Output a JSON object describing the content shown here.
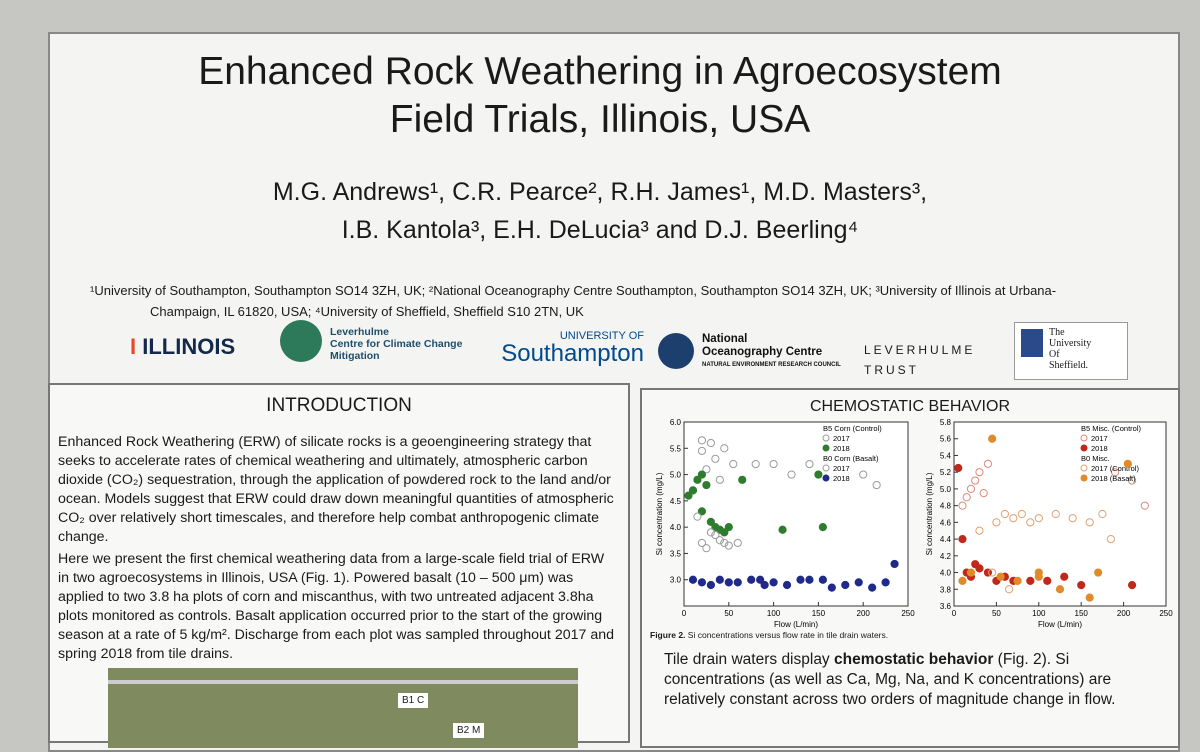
{
  "header": {
    "title_lines": [
      "Enhanced Rock Weathering in Agroecosystem",
      "Field Trials, Illinois, USA"
    ],
    "author_lines": [
      "M.G. Andrews¹, C.R. Pearce², R.H. James¹, M.D. Masters³,",
      "I.B. Kantola³, E.H. DeLucia³ and D.J. Beerling⁴"
    ],
    "affiliation_lines": [
      "¹University of Southampton, Southampton SO14 3ZH, UK; ²National Oceanography Centre Southampton, Southampton SO14 3ZH, UK; ³University of Illinois at Urbana-",
      "Champaign, IL 61820, USA; ⁴University of Sheffield, Sheffield S10 2TN, UK"
    ]
  },
  "logos": {
    "illinois": "ILLINOIS",
    "leverhulme_centre": [
      "Leverhulme",
      "Centre for Climate Change",
      "Mitigation"
    ],
    "southampton": [
      "UNIVERSITY OF",
      "Southampton"
    ],
    "noc": [
      "National",
      "Oceanography Centre",
      "NATURAL ENVIRONMENT RESEARCH COUNCIL"
    ],
    "leverhulme_trust": [
      "LEVERHULME",
      "TRUST"
    ],
    "sheffield": [
      "The",
      "University",
      "Of",
      "Sheffield."
    ]
  },
  "introduction": {
    "heading": "INTRODUCTION",
    "paragraphs": [
      "Enhanced Rock Weathering (ERW) of silicate rocks is a geoengineering strategy that seeks to accelerate rates of chemical weathering and ultimately, atmospheric carbon dioxide (CO₂) sequestration, through the application of powdered rock to the land and/or ocean. Models suggest that ERW could draw down meaningful quantities of atmospheric CO₂ over relatively short timescales, and therefore help combat anthropogenic climate change.",
      "Here we present the first chemical weathering data from a large-scale field trial of ERW in two agroecosystems in Illinois, USA (Fig. 1). Powered basalt (10 – 500 μm) was applied to two 3.8 ha plots of corn and miscanthus, with two untreated adjacent 3.8ha plots monitored as controls. Basalt application occurred prior to the start of the growing season at a rate of 5 kg/m². Discharge from each plot was sampled throughout 2017 and spring 2018 from tile drains."
    ],
    "map_labels": [
      "B1 C",
      "B2 M"
    ]
  },
  "chemostatic": {
    "heading": "CHEMOSTATIC BEHAVIOR",
    "caption_bold": "Figure 2.",
    "caption": " Si concentrations versus flow rate in tile drain waters.",
    "text_before": "Tile drain waters display ",
    "text_bold": "chemostatic behavior",
    "text_after": " (Fig. 2). Si concentrations (as well as Ca, Mg, Na, and K concentrations) are relatively constant across two orders of magnitude change in flow.",
    "charts": [
      {
        "type": "scatter",
        "xlabel": "Flow (L/min)",
        "ylabel": "Si concentration (mg/L)",
        "xlim": [
          0,
          250
        ],
        "xticks": [
          0,
          50,
          100,
          150,
          200,
          250
        ],
        "ylim": [
          2.5,
          6.0
        ],
        "yticks": [
          {
            "value": 3,
            "label": "3.0"
          },
          3.5,
          {
            "value": 4,
            "label": "4.0"
          },
          4.5,
          {
            "value": 5,
            "label": "5.0"
          },
          5.5,
          {
            "value": 6,
            "label": "6.0"
          }
        ],
        "legend": [
          {
            "title": "B5 Corn (Control)",
            "series": [
              {
                "name": "2017",
                "color": "#9a9a9a",
                "filled": false,
                "x": [
                  20,
                  30,
                  45,
                  20,
                  35,
                  55,
                  25,
                  80,
                  100,
                  120,
                  140,
                  200,
                  215,
                  10,
                  40
                ],
                "values": [
                  5.65,
                  5.6,
                  5.5,
                  5.45,
                  5.3,
                  5.2,
                  5.1,
                  5.2,
                  5.2,
                  5.0,
                  5.2,
                  5.0,
                  4.8,
                  4.7,
                  4.9
                ]
              },
              {
                "name": "2018",
                "color": "#2e7d2e",
                "filled": true,
                "x": [
                  5,
                  10,
                  15,
                  20,
                  25,
                  30,
                  35,
                  40,
                  45,
                  50,
                  20,
                  65,
                  110,
                  150,
                  155
                ],
                "values": [
                  4.6,
                  4.7,
                  4.9,
                  5.0,
                  4.8,
                  4.1,
                  4.0,
                  3.95,
                  3.9,
                  4.0,
                  4.3,
                  4.9,
                  3.95,
                  5.0,
                  4.0
                ]
              }
            ]
          },
          {
            "title": "B0 Corn (Basalt)",
            "series": [
              {
                "name": "2017",
                "color": "#9a9a9a",
                "filled": false,
                "x": [
                  15,
                  20,
                  30,
                  40,
                  50,
                  60,
                  25,
                  35,
                  45
                ],
                "values": [
                  4.2,
                  3.7,
                  3.9,
                  3.75,
                  3.65,
                  3.7,
                  3.6,
                  3.85,
                  3.7
                ]
              },
              {
                "name": "2018",
                "color": "#1f2a8a",
                "filled": true,
                "x": [
                  10,
                  20,
                  30,
                  40,
                  50,
                  60,
                  75,
                  90,
                  100,
                  115,
                  130,
                  140,
                  155,
                  165,
                  180,
                  195,
                  210,
                  225,
                  235,
                  85
                ],
                "values": [
                  3.0,
                  2.95,
                  2.9,
                  3.0,
                  2.95,
                  2.95,
                  3.0,
                  2.9,
                  2.95,
                  2.9,
                  3.0,
                  3.0,
                  3.0,
                  2.85,
                  2.9,
                  2.95,
                  2.85,
                  2.95,
                  3.3,
                  3.0
                ]
              }
            ]
          }
        ]
      },
      {
        "type": "scatter",
        "xlabel": "Flow (L/min)",
        "ylabel": "Si concentration (mg/L)",
        "xlim": [
          0,
          250
        ],
        "xticks": [
          0,
          50,
          100,
          150,
          200,
          250
        ],
        "ylim": [
          3.6,
          5.8
        ],
        "yticks": [
          3.6,
          3.8,
          {
            "value": 4,
            "label": "4.0"
          },
          4.2,
          4.4,
          4.6,
          4.8,
          {
            "value": 5,
            "label": "5.0"
          },
          5.2,
          5.4,
          5.6,
          5.8
        ],
        "legend": [
          {
            "title": "B5 Misc. (Control)",
            "series": [
              {
                "name": "2017",
                "color": "#d98a7a",
                "filled": false,
                "x": [
                  20,
                  25,
                  30,
                  15,
                  40,
                  35,
                  10,
                  190,
                  210,
                  225
                ],
                "values": [
                  5.0,
                  5.1,
                  5.2,
                  4.9,
                  5.3,
                  4.95,
                  4.8,
                  5.2,
                  5.1,
                  4.8
                ]
              },
              {
                "name": "2018",
                "color": "#c0281c",
                "filled": true,
                "x": [
                  5,
                  10,
                  15,
                  20,
                  30,
                  40,
                  50,
                  60,
                  70,
                  90,
                  110,
                  130,
                  150,
                  210,
                  25
                ],
                "values": [
                  5.25,
                  4.4,
                  4.0,
                  3.95,
                  4.05,
                  4.0,
                  3.9,
                  3.95,
                  3.9,
                  3.9,
                  3.9,
                  3.95,
                  3.85,
                  3.85,
                  4.1
                ]
              }
            ]
          },
          {
            "title": "B0 Misc.",
            "series": [
              {
                "name": "2017 (Control)",
                "color": "#e0a070",
                "filled": false,
                "x": [
                  30,
                  50,
                  60,
                  70,
                  80,
                  90,
                  100,
                  120,
                  140,
                  160,
                  175,
                  185,
                  45,
                  65
                ],
                "values": [
                  4.5,
                  4.6,
                  4.7,
                  4.65,
                  4.7,
                  4.6,
                  4.65,
                  4.7,
                  4.65,
                  4.6,
                  4.7,
                  4.4,
                  4.0,
                  3.8
                ]
              },
              {
                "name": "2018 (Basalt)",
                "color": "#e08a2a",
                "filled": true,
                "x": [
                  10,
                  20,
                  45,
                  55,
                  75,
                  100,
                  125,
                  160,
                  170,
                  205,
                  100
                ],
                "values": [
                  3.9,
                  4.0,
                  5.6,
                  3.95,
                  3.9,
                  3.95,
                  3.8,
                  3.7,
                  4.0,
                  5.3,
                  4.0
                ]
              }
            ]
          }
        ]
      }
    ]
  }
}
